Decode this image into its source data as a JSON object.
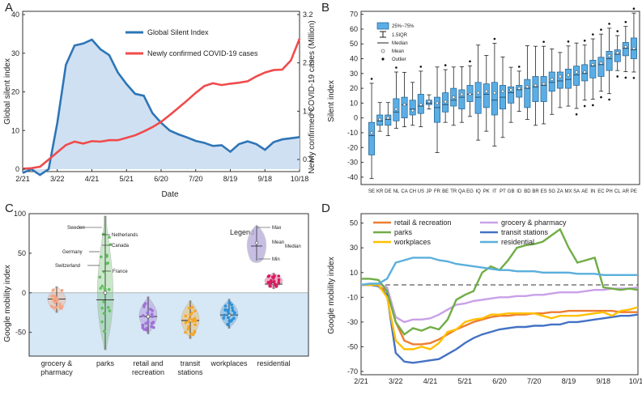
{
  "panels": {
    "A": {
      "letter": "A",
      "xlabel": "Date",
      "ylabel_left": "Global silent index",
      "ylabel_right": "Newly confirmed COVID-19 cases (Million)",
      "x_ticks": [
        "2/21",
        "3/22",
        "4/21",
        "5/21",
        "6/20",
        "7/20",
        "8/19",
        "9/18",
        "10/18"
      ],
      "y_left_ticks": [
        "0",
        "10",
        "20",
        "30",
        "40"
      ],
      "y_right_ticks": [
        "0.2",
        "1.2",
        "2.2",
        "3.2"
      ],
      "legend": [
        "Global Silent Index",
        "Newly confirmed COVID-19 cases"
      ],
      "colors": {
        "silent": "#2e75b6",
        "cases": "#f04b4b",
        "fill": "#cfe0f2"
      }
    },
    "B": {
      "letter": "B",
      "ylabel": "Silent index",
      "y_ticks": [
        "-40",
        "-30",
        "-20",
        "-10",
        "0",
        "10",
        "20",
        "30",
        "40",
        "50",
        "60",
        "70"
      ],
      "legend": [
        "25%~75%",
        "1.5IQR",
        "Median",
        "Mean",
        "Outlier"
      ]
    },
    "C": {
      "letter": "C",
      "ylabel": "Google mobility index",
      "y_ticks": [
        "100",
        "50",
        "0",
        "-50"
      ],
      "annotations": [
        "Sweden",
        "Netherlands",
        "Canada",
        "Germany",
        "Switzerland",
        "France"
      ],
      "legend_title": "Legend",
      "legend_items": [
        "Max",
        "Mean",
        "Median",
        "Min"
      ]
    },
    "D": {
      "letter": "D",
      "ylabel": "Google mobility index",
      "x_ticks": [
        "2/21",
        "3/22",
        "4/21",
        "5/21",
        "6/20",
        "7/20",
        "8/19",
        "9/18",
        "10/18"
      ],
      "y_ticks": [
        "50",
        "30",
        "10",
        "-10",
        "-30",
        "-50",
        "-70"
      ]
    }
  },
  "chart_data": [
    {
      "type": "line",
      "title": "A",
      "xlabel": "Date",
      "x": [
        "2/21",
        "2/28",
        "3/7",
        "3/14",
        "3/22",
        "3/29",
        "4/5",
        "4/12",
        "4/21",
        "4/28",
        "5/5",
        "5/12",
        "5/21",
        "5/28",
        "6/5",
        "6/12",
        "6/20",
        "6/27",
        "7/5",
        "7/12",
        "7/20",
        "7/27",
        "8/4",
        "8/11",
        "8/19",
        "8/26",
        "9/3",
        "9/10",
        "9/18",
        "9/25",
        "10/3",
        "10/10",
        "10/18"
      ],
      "series": [
        {
          "name": "Global Silent Index",
          "axis": "left",
          "ylim": [
            0,
            40
          ],
          "values": [
            -1,
            0,
            -1.5,
            0,
            12,
            27,
            32,
            32.5,
            33.5,
            31,
            29.5,
            25,
            22,
            19.5,
            19,
            14.5,
            12,
            10,
            9,
            8.2,
            7.3,
            6.8,
            6,
            6.2,
            4.5,
            6.5,
            7.2,
            6.5,
            5,
            7,
            7.7,
            8,
            8.3
          ]
        },
        {
          "name": "Newly confirmed COVID-19 cases",
          "axis": "right",
          "ylim": [
            0,
            3.2
          ],
          "values": [
            0.01,
            0.02,
            0.05,
            0.2,
            0.35,
            0.5,
            0.57,
            0.53,
            0.58,
            0.57,
            0.6,
            0.6,
            0.65,
            0.7,
            0.78,
            0.87,
            0.98,
            1.12,
            1.27,
            1.42,
            1.58,
            1.72,
            1.78,
            1.74,
            1.77,
            1.79,
            1.82,
            1.92,
            2.0,
            2.05,
            2.06,
            2.25,
            2.7
          ]
        }
      ]
    },
    {
      "type": "box",
      "title": "B",
      "ylabel": "Silent index",
      "ylim": [
        -45,
        72
      ],
      "categories": [
        "SE",
        "KR",
        "DE",
        "NL",
        "CA",
        "CH",
        "US",
        "JP",
        "FR",
        "BE",
        "TR",
        "QA",
        "EG",
        "IQ",
        "PK",
        "IT",
        "PT",
        "GB",
        "ID",
        "BD",
        "BR",
        "ES",
        "SG",
        "ZA",
        "MX",
        "SA",
        "AE",
        "IN",
        "EC",
        "PH",
        "CL",
        "AR",
        "PE"
      ],
      "boxes": [
        [
          -41,
          -25,
          -12,
          -10,
          -3
        ],
        [
          -9,
          -5,
          -2,
          -1,
          2
        ],
        [
          -12,
          -5,
          -1,
          0,
          2
        ],
        [
          -7,
          -2,
          4,
          6,
          13
        ],
        [
          -6,
          0,
          9,
          9,
          14
        ],
        [
          -5,
          2,
          6,
          5,
          12
        ],
        [
          -6,
          3,
          8,
          9,
          16
        ],
        [
          6,
          9,
          10,
          11,
          12
        ],
        [
          -28,
          -3,
          7,
          10,
          14
        ],
        [
          -3,
          4,
          9,
          11,
          17
        ],
        [
          -5,
          8,
          12,
          14,
          20
        ],
        [
          -3,
          6,
          14,
          16,
          19
        ],
        [
          1,
          11,
          16,
          16,
          22
        ],
        [
          -15,
          3,
          14,
          17,
          24
        ],
        [
          -9,
          7,
          16,
          18,
          23
        ],
        [
          -19,
          2,
          12,
          17,
          24
        ],
        [
          -14,
          6,
          14,
          18,
          22
        ],
        [
          -3,
          10,
          17,
          19,
          21
        ],
        [
          -7,
          14,
          19,
          20,
          22
        ],
        [
          -1,
          7,
          20,
          21,
          26
        ],
        [
          -5,
          11,
          21,
          22,
          28
        ],
        [
          -4,
          11,
          22,
          23,
          28
        ],
        [
          0,
          18,
          24,
          26,
          31
        ],
        [
          7,
          20,
          25,
          28,
          31
        ],
        [
          8,
          20,
          26,
          29,
          33
        ],
        [
          -1,
          22,
          29,
          31,
          35
        ],
        [
          12,
          25,
          30,
          31,
          36
        ],
        [
          3,
          27,
          35,
          36,
          39
        ],
        [
          18,
          28,
          36,
          37,
          41
        ],
        [
          10,
          32,
          40,
          42,
          45
        ],
        [
          32,
          38,
          43,
          44,
          46
        ],
        [
          28,
          42,
          47,
          48,
          51
        ],
        [
          31,
          40,
          46,
          47,
          54
        ]
      ],
      "box_fields": [
        "q1_whisker_low",
        "q1",
        "median",
        "mean",
        "q3"
      ]
    },
    {
      "type": "violin",
      "title": "C",
      "ylabel": "Google mobility index",
      "ylim": [
        -80,
        100
      ],
      "categories": [
        "grocery & pharmacy",
        "parks",
        "retail and recreation",
        "transit stations",
        "workplaces",
        "residential"
      ],
      "stats": [
        {
          "min": -25,
          "median": -8,
          "mean": -9,
          "max": 8
        },
        {
          "min": -72,
          "median": -9,
          "mean": 0,
          "max": 97
        },
        {
          "min": -52,
          "median": -30,
          "mean": -30,
          "max": -5
        },
        {
          "min": -58,
          "median": -35,
          "mean": -35,
          "max": -10
        },
        {
          "min": -45,
          "median": -28,
          "mean": -28,
          "max": -8
        },
        {
          "min": 5,
          "median": 11,
          "mean": 12,
          "max": 25
        }
      ],
      "colors": [
        "#f4a582",
        "#66bd63",
        "#a06fd6",
        "#f5a623",
        "#2e8fd6",
        "#d81b60"
      ]
    },
    {
      "type": "line",
      "title": "D",
      "ylabel": "Google mobility index",
      "ylim": [
        -70,
        55
      ],
      "x": [
        "2/21",
        "2/28",
        "3/7",
        "3/14",
        "3/22",
        "3/29",
        "4/5",
        "4/12",
        "4/21",
        "4/28",
        "5/5",
        "5/12",
        "5/21",
        "5/28",
        "6/5",
        "6/12",
        "6/20",
        "6/27",
        "7/5",
        "7/12",
        "7/20",
        "7/27",
        "8/4",
        "8/11",
        "8/19",
        "8/26",
        "9/3",
        "9/10",
        "9/18",
        "9/25",
        "10/3",
        "10/10",
        "10/18"
      ],
      "series": [
        {
          "name": "retail & recreation",
          "color": "#ed7d31",
          "values": [
            0,
            0,
            -1,
            -5,
            -30,
            -45,
            -48,
            -48,
            -47,
            -44,
            -40,
            -36,
            -33,
            -30,
            -28,
            -26,
            -25,
            -25,
            -24,
            -24,
            -23,
            -23,
            -22,
            -22,
            -21,
            -21,
            -21,
            -21,
            -21,
            -21,
            -22,
            -22,
            -22
          ]
        },
        {
          "name": "grocery & pharmacy",
          "color": "#c9a0e8",
          "values": [
            0,
            0,
            1,
            -2,
            -26,
            -30,
            -28,
            -28,
            -27,
            -24,
            -20,
            -16,
            -15,
            -13,
            -12,
            -11,
            -10,
            -10,
            -9,
            -9,
            -8,
            -8,
            -7,
            -6,
            -6,
            -6,
            -5,
            -4,
            -4,
            -3,
            -3,
            -3,
            -2
          ]
        },
        {
          "name": "parks",
          "color": "#70ad47",
          "values": [
            5,
            5,
            4,
            -5,
            -30,
            -40,
            -35,
            -37,
            -34,
            -36,
            -28,
            -12,
            -8,
            -5,
            10,
            15,
            12,
            20,
            30,
            32,
            33,
            35,
            40,
            45,
            30,
            18,
            20,
            22,
            -2,
            -3,
            -4,
            -3,
            -4
          ]
        },
        {
          "name": "transit stations",
          "color": "#4472c4",
          "values": [
            0,
            0,
            -1,
            -8,
            -55,
            -62,
            -63,
            -62,
            -61,
            -60,
            -56,
            -52,
            -47,
            -43,
            -40,
            -38,
            -36,
            -35,
            -34,
            -34,
            -33,
            -33,
            -32,
            -32,
            -30,
            -30,
            -29,
            -28,
            -27,
            -26,
            -25,
            -25,
            -24
          ]
        },
        {
          "name": "workplaces",
          "color": "#ffc000",
          "values": [
            0,
            0,
            0,
            -10,
            -45,
            -52,
            -52,
            -50,
            -52,
            -47,
            -38,
            -36,
            -30,
            -28,
            -27,
            -24,
            -24,
            -23,
            -23,
            -23,
            -23,
            -25,
            -27,
            -25,
            -25,
            -25,
            -24,
            -23,
            -22,
            -25,
            -21,
            -20,
            -18
          ]
        },
        {
          "name": "residential",
          "color": "#5aafdc",
          "values": [
            0,
            1,
            1,
            5,
            18,
            20,
            22,
            22,
            22,
            20,
            19,
            17,
            16,
            15,
            14,
            13,
            12,
            12,
            11,
            11,
            11,
            10,
            10,
            10,
            10,
            9,
            9,
            9,
            8,
            8,
            8,
            8,
            8
          ]
        }
      ]
    }
  ]
}
